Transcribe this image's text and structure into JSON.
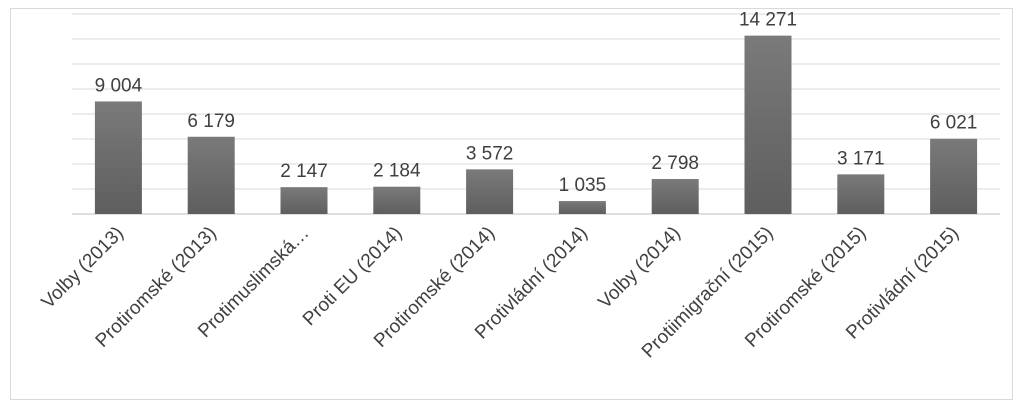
{
  "chart_data": {
    "type": "bar",
    "title": "",
    "xlabel": "",
    "ylabel": "",
    "categories": [
      "Volby (2013)",
      "Protiromské (2013)",
      "Protimuslimská…",
      "Proti EU (2014)",
      "Protiromské (2014)",
      "Protivládní (2014)",
      "Volby (2014)",
      "Protiimigrační (2015)",
      "Protiromské (2015)",
      "Protivládní (2015)"
    ],
    "values": [
      9004,
      6179,
      2147,
      2184,
      3572,
      1035,
      2798,
      14271,
      3171,
      6021
    ],
    "value_labels": [
      "9 004",
      "6 179",
      "2 147",
      "2 184",
      "3 572",
      "1 035",
      "2 798",
      "14 271",
      "3 171",
      "6 021"
    ],
    "ylim": [
      0,
      16000
    ],
    "grid": true,
    "legend": "none",
    "colors": {
      "bar": "#5e5e5e",
      "bar_top": "#7a7a7a",
      "grid": "#d9d9d9",
      "axis": "#bfbfbf",
      "text": "#404040"
    }
  }
}
